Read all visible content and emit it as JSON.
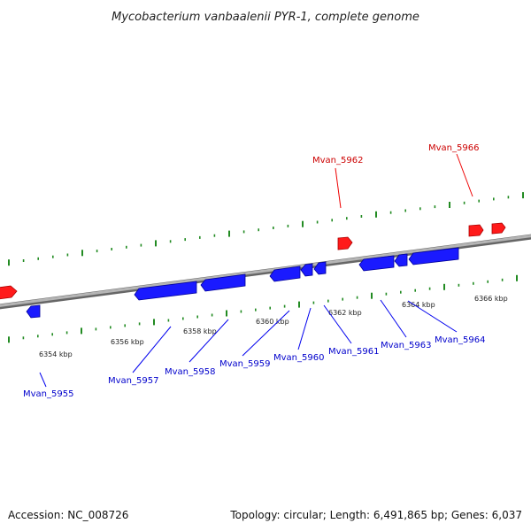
{
  "title": "Mycobacterium vanbaalenii PYR-1, complete genome",
  "footer": {
    "accession": "Accession: NC_008726",
    "summary": "Topology: circular; Length: 6,491,865 bp; Genes: 6,037"
  },
  "colors": {
    "forward_gene": "#ff0000",
    "reverse_gene": "#0000ee",
    "tick": "#228b22",
    "backbone": "#8c8c8c",
    "forward_label": "#cc0000",
    "reverse_label": "#0000cc"
  },
  "scale_labels": [
    "6354 kbp",
    "6356 kbp",
    "6358 kbp",
    "6360 kbp",
    "6362 kbp",
    "6364 kbp",
    "6366 kbp"
  ],
  "gene_labels": {
    "forward": [
      "Mvan_5962",
      "Mvan_5966"
    ],
    "reverse": [
      "Mvan_5955",
      "Mvan_5957",
      "Mvan_5958",
      "Mvan_5959",
      "Mvan_5960",
      "Mvan_5961",
      "Mvan_5963",
      "Mvan_5964"
    ]
  }
}
